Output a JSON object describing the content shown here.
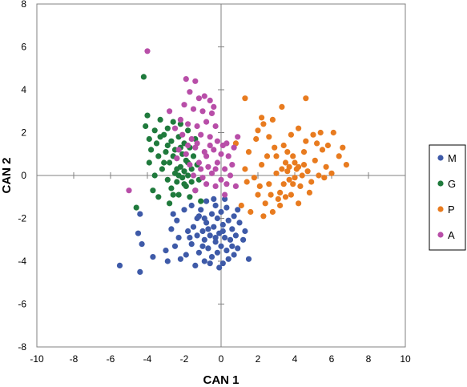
{
  "chart_data": {
    "type": "scatter",
    "xlabel": "CAN 1",
    "ylabel": "CAN 2",
    "xlim": [
      -10,
      10
    ],
    "ylim": [
      -8,
      8
    ],
    "x_ticks": [
      -10,
      -8,
      -6,
      -4,
      -2,
      0,
      2,
      4,
      6,
      8,
      10
    ],
    "y_ticks": [
      -8,
      -6,
      -4,
      -2,
      0,
      2,
      4,
      6,
      8
    ],
    "grid": false,
    "legend_position": "right",
    "series": [
      {
        "name": "M",
        "color": "#3e5aa8",
        "points": [
          [
            -4.4,
            -4.5
          ],
          [
            -5.5,
            -4.2
          ],
          [
            -4.3,
            -3.2
          ],
          [
            -4.5,
            -2.7
          ],
          [
            -4.4,
            -1.8
          ],
          [
            -3.7,
            -3.8
          ],
          [
            -2.9,
            -4.0
          ],
          [
            -2.7,
            -2.5
          ],
          [
            -2.5,
            -3.3
          ],
          [
            -2.2,
            -3.9
          ],
          [
            -2.4,
            -2.1
          ],
          [
            -2.0,
            -1.6
          ],
          [
            -1.8,
            -2.6
          ],
          [
            -1.6,
            -3.2
          ],
          [
            -1.4,
            -4.2
          ],
          [
            -1.6,
            -1.4
          ],
          [
            -1.3,
            -2.0
          ],
          [
            -1.2,
            -3.6
          ],
          [
            -1.1,
            -1.6
          ],
          [
            -1.0,
            -2.6
          ],
          [
            -0.9,
            -3.0
          ],
          [
            -0.9,
            -4.0
          ],
          [
            -0.8,
            -1.2
          ],
          [
            -0.8,
            -2.2
          ],
          [
            -0.7,
            -3.4
          ],
          [
            -0.6,
            -2.8
          ],
          [
            -0.5,
            -1.8
          ],
          [
            -0.5,
            -3.8
          ],
          [
            -0.4,
            -2.4
          ],
          [
            -0.3,
            -3.1
          ],
          [
            -0.3,
            -1.4
          ],
          [
            -0.2,
            -2.0
          ],
          [
            -0.2,
            -3.6
          ],
          [
            -0.1,
            -2.7
          ],
          [
            0.0,
            -1.7
          ],
          [
            0.0,
            -3.3
          ],
          [
            0.1,
            -2.3
          ],
          [
            0.1,
            -4.1
          ],
          [
            0.2,
            -2.9
          ],
          [
            0.3,
            -1.5
          ],
          [
            0.3,
            -3.5
          ],
          [
            0.4,
            -2.1
          ],
          [
            0.5,
            -3.0
          ],
          [
            0.6,
            -2.5
          ],
          [
            0.7,
            -1.9
          ],
          [
            0.7,
            -3.7
          ],
          [
            0.8,
            -2.8
          ],
          [
            0.9,
            -3.4
          ],
          [
            1.0,
            -2.2
          ],
          [
            1.2,
            -3.0
          ],
          [
            1.3,
            -2.6
          ],
          [
            -0.1,
            -4.3
          ],
          [
            -2.3,
            -2.9
          ],
          [
            -1.9,
            -3.7
          ],
          [
            -1.5,
            -2.4
          ],
          [
            -1.2,
            -1.9
          ],
          [
            -0.6,
            -4.1
          ],
          [
            0.4,
            -3.9
          ],
          [
            0.9,
            -1.6
          ],
          [
            1.5,
            -3.9
          ],
          [
            -3.0,
            -3.5
          ],
          [
            -2.6,
            -1.8
          ],
          [
            -1.7,
            -2.9
          ],
          [
            -0.4,
            -1.1
          ],
          [
            0.2,
            -1.1
          ],
          [
            -1.0,
            -3.3
          ],
          [
            -0.7,
            -2.5
          ],
          [
            -0.3,
            -2.9
          ],
          [
            0.6,
            -3.3
          ],
          [
            -1.3,
            -2.8
          ],
          [
            -0.9,
            -2.0
          ],
          [
            0.1,
            -2.6
          ]
        ]
      },
      {
        "name": "G",
        "color": "#1f7a3c",
        "points": [
          [
            -4.2,
            4.6
          ],
          [
            -4.0,
            2.8
          ],
          [
            -4.1,
            2.3
          ],
          [
            -3.9,
            1.7
          ],
          [
            -3.8,
            1.2
          ],
          [
            -3.9,
            0.6
          ],
          [
            -3.6,
            2.1
          ],
          [
            -3.5,
            1.5
          ],
          [
            -3.4,
            0.9
          ],
          [
            -3.3,
            2.6
          ],
          [
            -3.2,
            0.3
          ],
          [
            -3.1,
            1.9
          ],
          [
            -3.0,
            1.1
          ],
          [
            -2.9,
            -0.2
          ],
          [
            -2.9,
            2.2
          ],
          [
            -2.8,
            0.6
          ],
          [
            -2.7,
            1.6
          ],
          [
            -2.7,
            -0.6
          ],
          [
            -2.6,
            2.5
          ],
          [
            -2.5,
            0.1
          ],
          [
            -2.5,
            1.2
          ],
          [
            -2.4,
            -0.3
          ],
          [
            -2.4,
            0.8
          ],
          [
            -2.3,
            1.8
          ],
          [
            -2.3,
            -0.9
          ],
          [
            -2.2,
            0.4
          ],
          [
            -2.2,
            2.4
          ],
          [
            -2.1,
            -0.1
          ],
          [
            -2.1,
            1.0
          ],
          [
            -2.0,
            0.2
          ],
          [
            -2.0,
            1.5
          ],
          [
            -1.9,
            -0.5
          ],
          [
            -1.9,
            0.7
          ],
          [
            -1.8,
            0.0
          ],
          [
            -1.8,
            2.1
          ],
          [
            -1.7,
            -1.0
          ],
          [
            -1.7,
            1.3
          ],
          [
            -1.6,
            0.3
          ],
          [
            -1.6,
            -0.3
          ],
          [
            -1.5,
            0.9
          ],
          [
            -1.4,
            -0.7
          ],
          [
            -1.4,
            1.7
          ],
          [
            -1.3,
            0.5
          ],
          [
            -1.2,
            -0.2
          ],
          [
            -1.1,
            -1.2
          ],
          [
            -4.6,
            -1.5
          ],
          [
            -3.7,
            -0.7
          ],
          [
            -3.4,
            -1.0
          ],
          [
            -2.8,
            -1.3
          ],
          [
            -2.6,
            -0.9
          ],
          [
            -3.6,
            0.0
          ],
          [
            -3.1,
            0.6
          ],
          [
            -2.3,
            0.0
          ],
          [
            -2.0,
            -0.4
          ],
          [
            -2.4,
            0.3
          ],
          [
            -2.6,
            0.9
          ],
          [
            -1.8,
            0.6
          ],
          [
            -2.2,
            1.3
          ],
          [
            -2.9,
            1.4
          ],
          [
            -3.3,
            1.8
          ]
        ]
      },
      {
        "name": "P",
        "color": "#e87b1f",
        "points": [
          [
            1.3,
            3.6
          ],
          [
            2.2,
            2.7
          ],
          [
            2.8,
            2.6
          ],
          [
            3.3,
            3.2
          ],
          [
            4.6,
            3.6
          ],
          [
            0.8,
            1.5
          ],
          [
            1.5,
            1.1
          ],
          [
            2.0,
            2.1
          ],
          [
            2.6,
            1.8
          ],
          [
            3.0,
            0.9
          ],
          [
            3.4,
            1.4
          ],
          [
            3.8,
            1.9
          ],
          [
            4.2,
            2.2
          ],
          [
            4.6,
            1.6
          ],
          [
            5.0,
            1.9
          ],
          [
            5.4,
            2.0
          ],
          [
            5.8,
            1.4
          ],
          [
            6.1,
            2.0
          ],
          [
            6.6,
            1.3
          ],
          [
            6.8,
            0.5
          ],
          [
            1.3,
            0.3
          ],
          [
            1.8,
            -0.1
          ],
          [
            2.2,
            0.5
          ],
          [
            2.6,
            -0.4
          ],
          [
            3.0,
            0.1
          ],
          [
            3.2,
            -0.8
          ],
          [
            3.5,
            0.6
          ],
          [
            3.7,
            -0.2
          ],
          [
            3.9,
            0.9
          ],
          [
            4.1,
            0.3
          ],
          [
            4.3,
            -0.5
          ],
          [
            4.5,
            1.1
          ],
          [
            4.7,
            0.2
          ],
          [
            4.9,
            -0.3
          ],
          [
            5.1,
            0.7
          ],
          [
            5.3,
            0.0
          ],
          [
            5.5,
            1.2
          ],
          [
            5.7,
            0.4
          ],
          [
            6.0,
            0.1
          ],
          [
            2.0,
            -0.9
          ],
          [
            2.4,
            -1.3
          ],
          [
            2.8,
            -1.7
          ],
          [
            3.2,
            -1.4
          ],
          [
            3.5,
            -1.0
          ],
          [
            3.8,
            -0.9
          ],
          [
            4.2,
            -1.3
          ],
          [
            1.6,
            -1.7
          ],
          [
            2.3,
            -1.9
          ],
          [
            1.1,
            -1.4
          ],
          [
            2.7,
            -0.9
          ],
          [
            3.4,
            -0.4
          ],
          [
            3.6,
            0.2
          ],
          [
            4.0,
            0.6
          ],
          [
            4.4,
            0.0
          ],
          [
            4.0,
            -0.1
          ],
          [
            3.7,
            0.4
          ],
          [
            4.2,
            0.4
          ],
          [
            3.9,
            -0.4
          ],
          [
            2.9,
            1.3
          ],
          [
            5.2,
            1.5
          ],
          [
            4.8,
            -0.8
          ],
          [
            2.5,
            0.9
          ],
          [
            1.9,
            1.7
          ],
          [
            6.4,
            0.9
          ],
          [
            1.4,
            -0.3
          ],
          [
            3.1,
            -1.1
          ],
          [
            4.5,
            0.5
          ],
          [
            3.3,
            0.3
          ],
          [
            2.1,
            -0.5
          ],
          [
            5.6,
            -0.1
          ],
          [
            2.3,
            2.4
          ],
          [
            3.6,
            1.1
          ]
        ]
      },
      {
        "name": "A",
        "color": "#b84ea8",
        "points": [
          [
            -4.0,
            5.8
          ],
          [
            -1.9,
            4.5
          ],
          [
            -1.4,
            4.4
          ],
          [
            -1.7,
            3.9
          ],
          [
            -1.2,
            3.6
          ],
          [
            -0.9,
            3.7
          ],
          [
            -0.6,
            3.5
          ],
          [
            -2.0,
            3.3
          ],
          [
            -1.5,
            3.1
          ],
          [
            -1.0,
            3.0
          ],
          [
            -0.5,
            2.9
          ],
          [
            -2.2,
            2.6
          ],
          [
            -1.8,
            2.4
          ],
          [
            -1.3,
            2.3
          ],
          [
            -0.8,
            2.5
          ],
          [
            -0.3,
            2.3
          ],
          [
            -2.1,
            1.9
          ],
          [
            -1.6,
            1.7
          ],
          [
            -1.1,
            1.9
          ],
          [
            -0.6,
            1.8
          ],
          [
            -0.2,
            1.6
          ],
          [
            0.3,
            1.5
          ],
          [
            0.7,
            1.3
          ],
          [
            -2.3,
            1.2
          ],
          [
            -1.9,
            1.0
          ],
          [
            -1.4,
            1.3
          ],
          [
            -0.9,
            1.1
          ],
          [
            -0.4,
            1.2
          ],
          [
            0.0,
            1.0
          ],
          [
            0.4,
            0.9
          ],
          [
            -1.7,
            0.5
          ],
          [
            -1.2,
            0.6
          ],
          [
            -0.7,
            0.4
          ],
          [
            -0.2,
            0.6
          ],
          [
            0.2,
            0.3
          ],
          [
            0.6,
            0.5
          ],
          [
            -1.5,
            0.0
          ],
          [
            -1.0,
            -0.1
          ],
          [
            -0.5,
            0.1
          ],
          [
            0.0,
            -0.2
          ],
          [
            0.5,
            0.0
          ],
          [
            -0.8,
            -0.4
          ],
          [
            -0.3,
            -0.5
          ],
          [
            0.3,
            -0.4
          ],
          [
            0.8,
            -0.5
          ],
          [
            -1.4,
            -0.7
          ],
          [
            0.2,
            -0.9
          ],
          [
            -5.0,
            -0.7
          ],
          [
            -2.8,
            3.0
          ],
          [
            -2.5,
            2.2
          ],
          [
            -0.4,
            3.2
          ],
          [
            0.9,
            1.8
          ],
          [
            -1.3,
            1.5
          ],
          [
            -0.8,
            0.9
          ],
          [
            -0.3,
            0.3
          ],
          [
            0.1,
            1.4
          ],
          [
            -1.1,
            0.3
          ],
          [
            -0.6,
            1.4
          ],
          [
            -1.8,
            1.4
          ],
          [
            -2.4,
            0.8
          ]
        ]
      }
    ]
  }
}
